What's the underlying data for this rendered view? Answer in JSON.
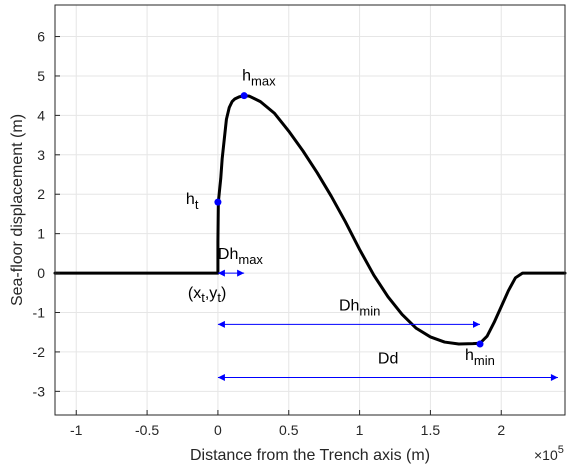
{
  "chart_data": {
    "type": "line",
    "xlabel": "Distance from the Trench axis (m)",
    "ylabel": "Sea-floor displacement (m)",
    "x_exponent_label": "×10",
    "x_exponent_power": "5",
    "xlim": [
      -115000,
      245000
    ],
    "ylim": [
      -3.6,
      6.8
    ],
    "xticks": [
      -100000,
      -50000,
      0,
      50000,
      100000,
      150000,
      200000
    ],
    "xtick_labels": [
      "-1",
      "-0.5",
      "0",
      "0.5",
      "1",
      "1.5",
      "2"
    ],
    "yticks": [
      -3,
      -2,
      -1,
      0,
      1,
      2,
      3,
      4,
      5,
      6
    ],
    "ytick_labels": [
      "-3",
      "-2",
      "-1",
      "0",
      "1",
      "2",
      "3",
      "4",
      "5",
      "6"
    ],
    "grid": true,
    "series": [
      {
        "color": "#000000",
        "x": [
          -115000,
          -100000,
          -50000,
          0,
          0,
          300,
          1000,
          2000,
          3000,
          4500,
          6000,
          8000,
          10000,
          12000,
          15000,
          18500,
          22000,
          30000,
          40000,
          50000,
          60000,
          70000,
          80000,
          90000,
          100000,
          110000,
          120000,
          130000,
          140000,
          150000,
          160000,
          170000,
          180000,
          185000,
          190000,
          195000,
          200000,
          205000,
          210000,
          215000,
          220000,
          225000,
          230000,
          235000,
          240000,
          245000
        ],
        "y": [
          0,
          0,
          0,
          0,
          0.8,
          1.8,
          2.05,
          2.4,
          2.9,
          3.4,
          3.9,
          4.2,
          4.35,
          4.42,
          4.47,
          4.5,
          4.49,
          4.35,
          4.05,
          3.6,
          3.1,
          2.55,
          1.95,
          1.3,
          0.6,
          -0.05,
          -0.6,
          -1.05,
          -1.4,
          -1.62,
          -1.75,
          -1.8,
          -1.79,
          -1.78,
          -1.6,
          -1.25,
          -0.85,
          -0.45,
          -0.12,
          0,
          0,
          0,
          0,
          0,
          0,
          0
        ]
      }
    ],
    "points": [
      {
        "label": "h",
        "sub": "max",
        "x": 18500,
        "y": 4.5
      },
      {
        "label": "h",
        "sub": "t",
        "x": 0,
        "y": 1.8
      },
      {
        "label": "h",
        "sub": "min",
        "x": 185000,
        "y": -1.8
      }
    ],
    "origin_label": {
      "pre": "(x",
      "sub1": "t",
      "mid": ",y",
      "sub2": "t",
      "post": ")",
      "x": 0,
      "y": 0
    },
    "ranges": [
      {
        "label": "Dh",
        "sub": "max",
        "x1": 0,
        "x2": 18500,
        "y": 0
      },
      {
        "label": "Dh",
        "sub": "min",
        "x1": 0,
        "x2": 185000,
        "y": -1.3
      },
      {
        "label": "Dd",
        "sub": "",
        "x1": 0,
        "x2": 240000,
        "y": -2.65
      }
    ],
    "colors": {
      "curve": "#000000",
      "marker": "#0000ff",
      "arrow": "#0000ff",
      "grid": "#e6e6e6",
      "axis": "#262626"
    }
  }
}
